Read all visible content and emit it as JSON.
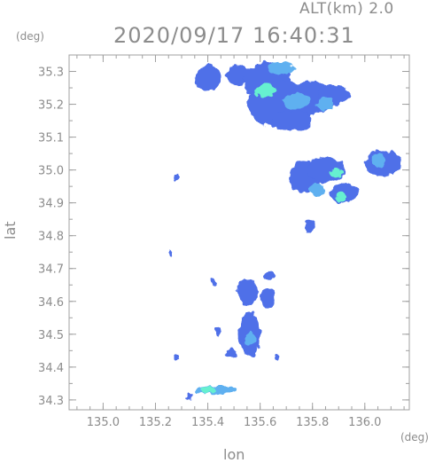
{
  "chart_data": {
    "type": "heatmap",
    "title": "2020/09/17 16:40:31",
    "subtitle": "ALT(km) 2.0",
    "xlabel": "lon",
    "ylabel": "lat",
    "xunit": "(deg)",
    "yunit": "(deg)",
    "xlim": [
      134.87,
      136.17
    ],
    "ylim": [
      34.27,
      35.35
    ],
    "xticks": [
      "135.0",
      "135.2",
      "135.4",
      "135.6",
      "135.8",
      "136.0"
    ],
    "yticks": [
      "34.3",
      "34.4",
      "34.5",
      "34.6",
      "34.7",
      "34.8",
      "34.9",
      "35.0",
      "35.1",
      "35.2",
      "35.3"
    ],
    "grid": false,
    "legend": "none",
    "colors": {
      "low": "#4f6fe8",
      "mid": "#5fb0f0",
      "high": "#66f0d0",
      "axis": "#a0a0a0"
    },
    "regions": [
      {
        "lon": 135.52,
        "lat": 35.29,
        "rlon": 0.05,
        "rlat": 0.03,
        "level": "low"
      },
      {
        "lon": 135.4,
        "lat": 35.28,
        "rlon": 0.05,
        "rlat": 0.04,
        "level": "low"
      },
      {
        "lon": 135.63,
        "lat": 35.27,
        "rlon": 0.09,
        "rlat": 0.06,
        "level": "low"
      },
      {
        "lon": 135.68,
        "lat": 35.2,
        "rlon": 0.13,
        "rlat": 0.07,
        "level": "low"
      },
      {
        "lon": 135.8,
        "lat": 35.22,
        "rlon": 0.09,
        "rlat": 0.05,
        "level": "low"
      },
      {
        "lon": 135.88,
        "lat": 35.23,
        "rlon": 0.06,
        "rlat": 0.03,
        "level": "low"
      },
      {
        "lon": 135.72,
        "lat": 35.15,
        "rlon": 0.08,
        "rlat": 0.03,
        "level": "low"
      },
      {
        "lon": 135.68,
        "lat": 35.31,
        "rlon": 0.05,
        "rlat": 0.02,
        "level": "mid"
      },
      {
        "lon": 135.62,
        "lat": 35.24,
        "rlon": 0.04,
        "rlat": 0.02,
        "level": "high"
      },
      {
        "lon": 135.74,
        "lat": 35.21,
        "rlon": 0.05,
        "rlat": 0.025,
        "level": "mid"
      },
      {
        "lon": 135.85,
        "lat": 35.2,
        "rlon": 0.03,
        "rlat": 0.02,
        "level": "mid"
      },
      {
        "lon": 135.77,
        "lat": 34.98,
        "rlon": 0.06,
        "rlat": 0.05,
        "level": "low"
      },
      {
        "lon": 135.85,
        "lat": 35.0,
        "rlon": 0.07,
        "rlat": 0.04,
        "level": "low"
      },
      {
        "lon": 136.07,
        "lat": 35.02,
        "rlon": 0.07,
        "rlat": 0.04,
        "level": "low"
      },
      {
        "lon": 136.05,
        "lat": 35.03,
        "rlon": 0.03,
        "rlat": 0.02,
        "level": "mid"
      },
      {
        "lon": 135.92,
        "lat": 34.93,
        "rlon": 0.05,
        "rlat": 0.03,
        "level": "low"
      },
      {
        "lon": 135.91,
        "lat": 34.92,
        "rlon": 0.02,
        "rlat": 0.015,
        "level": "high"
      },
      {
        "lon": 135.82,
        "lat": 34.94,
        "rlon": 0.03,
        "rlat": 0.02,
        "level": "mid"
      },
      {
        "lon": 135.89,
        "lat": 34.99,
        "rlon": 0.02,
        "rlat": 0.015,
        "level": "high"
      },
      {
        "lon": 135.79,
        "lat": 34.83,
        "rlon": 0.02,
        "rlat": 0.02,
        "level": "low"
      },
      {
        "lon": 135.28,
        "lat": 34.98,
        "rlon": 0.015,
        "rlat": 0.01,
        "level": "low"
      },
      {
        "lon": 135.55,
        "lat": 34.63,
        "rlon": 0.04,
        "rlat": 0.04,
        "level": "low"
      },
      {
        "lon": 135.56,
        "lat": 34.5,
        "rlon": 0.04,
        "rlat": 0.07,
        "level": "low"
      },
      {
        "lon": 135.56,
        "lat": 34.49,
        "rlon": 0.02,
        "rlat": 0.02,
        "level": "mid"
      },
      {
        "lon": 135.63,
        "lat": 34.61,
        "rlon": 0.03,
        "rlat": 0.03,
        "level": "low"
      },
      {
        "lon": 135.64,
        "lat": 34.68,
        "rlon": 0.02,
        "rlat": 0.015,
        "level": "low"
      },
      {
        "lon": 135.44,
        "lat": 34.51,
        "rlon": 0.01,
        "rlat": 0.015,
        "level": "low"
      },
      {
        "lon": 135.49,
        "lat": 34.44,
        "rlon": 0.02,
        "rlat": 0.015,
        "level": "low"
      },
      {
        "lon": 135.28,
        "lat": 34.43,
        "rlon": 0.01,
        "rlat": 0.008,
        "level": "low"
      },
      {
        "lon": 135.66,
        "lat": 34.43,
        "rlon": 0.01,
        "rlat": 0.01,
        "level": "low"
      },
      {
        "lon": 135.26,
        "lat": 34.75,
        "rlon": 0.008,
        "rlat": 0.008,
        "level": "low"
      },
      {
        "lon": 135.42,
        "lat": 34.66,
        "rlon": 0.01,
        "rlat": 0.01,
        "level": "low"
      },
      {
        "lon": 135.43,
        "lat": 34.33,
        "rlon": 0.08,
        "rlat": 0.012,
        "level": "mid"
      },
      {
        "lon": 135.4,
        "lat": 34.33,
        "rlon": 0.03,
        "rlat": 0.01,
        "level": "high"
      },
      {
        "lon": 135.33,
        "lat": 34.31,
        "rlon": 0.02,
        "rlat": 0.006,
        "level": "low"
      }
    ]
  }
}
